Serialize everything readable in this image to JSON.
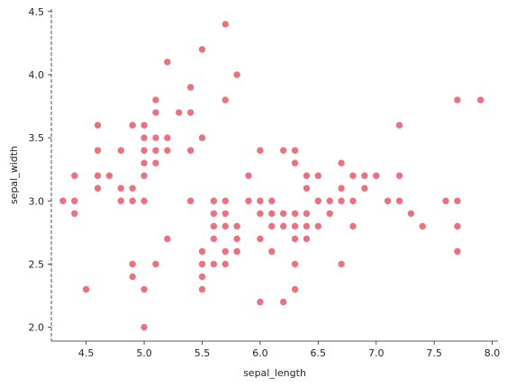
{
  "chart_data": {
    "type": "scatter",
    "title": "",
    "xlabel": "sepal_length",
    "ylabel": "sepal_width",
    "xlim": [
      4.2,
      8.05
    ],
    "ylim": [
      1.89,
      4.52
    ],
    "xticks": [
      4.5,
      5.0,
      5.5,
      6.0,
      6.5,
      7.0,
      7.5,
      8.0
    ],
    "yticks": [
      2.0,
      2.5,
      3.0,
      3.5,
      4.0,
      4.5
    ],
    "xtick_labels": [
      "4.5",
      "5.0",
      "5.5",
      "6.0",
      "6.5",
      "7.0",
      "7.5",
      "8.0"
    ],
    "ytick_labels": [
      "2.0",
      "2.5",
      "3.0",
      "3.5",
      "4.0",
      "4.5"
    ],
    "grid": false,
    "color": "#e8727f",
    "points": [
      [
        5.1,
        3.5
      ],
      [
        4.9,
        3.0
      ],
      [
        4.7,
        3.2
      ],
      [
        4.6,
        3.1
      ],
      [
        5.0,
        3.6
      ],
      [
        5.4,
        3.9
      ],
      [
        4.6,
        3.4
      ],
      [
        5.0,
        3.4
      ],
      [
        4.4,
        2.9
      ],
      [
        4.9,
        3.1
      ],
      [
        5.4,
        3.7
      ],
      [
        4.8,
        3.4
      ],
      [
        4.8,
        3.0
      ],
      [
        4.3,
        3.0
      ],
      [
        5.8,
        4.0
      ],
      [
        5.7,
        4.4
      ],
      [
        5.4,
        3.9
      ],
      [
        5.1,
        3.5
      ],
      [
        5.7,
        3.8
      ],
      [
        5.1,
        3.8
      ],
      [
        5.4,
        3.4
      ],
      [
        5.1,
        3.7
      ],
      [
        4.6,
        3.6
      ],
      [
        5.1,
        3.3
      ],
      [
        4.8,
        3.4
      ],
      [
        5.0,
        3.0
      ],
      [
        5.0,
        3.4
      ],
      [
        5.2,
        3.5
      ],
      [
        5.2,
        3.4
      ],
      [
        4.7,
        3.2
      ],
      [
        4.8,
        3.1
      ],
      [
        5.4,
        3.4
      ],
      [
        5.2,
        4.1
      ],
      [
        5.5,
        4.2
      ],
      [
        4.9,
        3.1
      ],
      [
        5.0,
        3.2
      ],
      [
        5.5,
        3.5
      ],
      [
        4.9,
        3.6
      ],
      [
        4.4,
        3.0
      ],
      [
        5.1,
        3.4
      ],
      [
        5.0,
        3.5
      ],
      [
        4.5,
        2.3
      ],
      [
        4.4,
        3.2
      ],
      [
        5.0,
        3.5
      ],
      [
        5.1,
        3.8
      ],
      [
        4.8,
        3.0
      ],
      [
        5.1,
        3.8
      ],
      [
        4.6,
        3.2
      ],
      [
        5.3,
        3.7
      ],
      [
        5.0,
        3.3
      ],
      [
        7.0,
        3.2
      ],
      [
        6.4,
        3.2
      ],
      [
        6.9,
        3.1
      ],
      [
        5.5,
        2.3
      ],
      [
        6.5,
        2.8
      ],
      [
        5.7,
        2.8
      ],
      [
        6.3,
        3.3
      ],
      [
        4.9,
        2.4
      ],
      [
        6.6,
        2.9
      ],
      [
        5.2,
        2.7
      ],
      [
        5.0,
        2.0
      ],
      [
        5.9,
        3.0
      ],
      [
        6.0,
        2.2
      ],
      [
        6.1,
        2.9
      ],
      [
        5.6,
        2.9
      ],
      [
        6.7,
        3.1
      ],
      [
        5.6,
        3.0
      ],
      [
        5.8,
        2.7
      ],
      [
        6.2,
        2.2
      ],
      [
        5.6,
        2.5
      ],
      [
        5.9,
        3.2
      ],
      [
        6.1,
        2.8
      ],
      [
        6.3,
        2.5
      ],
      [
        6.1,
        2.8
      ],
      [
        6.4,
        2.9
      ],
      [
        6.6,
        3.0
      ],
      [
        6.8,
        2.8
      ],
      [
        6.7,
        3.0
      ],
      [
        6.0,
        2.9
      ],
      [
        5.7,
        2.6
      ],
      [
        5.5,
        2.4
      ],
      [
        5.5,
        2.4
      ],
      [
        5.8,
        2.7
      ],
      [
        6.0,
        2.7
      ],
      [
        5.4,
        3.0
      ],
      [
        6.0,
        3.4
      ],
      [
        6.7,
        3.1
      ],
      [
        6.3,
        2.3
      ],
      [
        5.6,
        3.0
      ],
      [
        5.5,
        2.5
      ],
      [
        5.5,
        2.6
      ],
      [
        6.1,
        3.0
      ],
      [
        5.8,
        2.6
      ],
      [
        5.0,
        2.3
      ],
      [
        5.6,
        2.7
      ],
      [
        5.7,
        3.0
      ],
      [
        5.7,
        2.9
      ],
      [
        6.2,
        2.9
      ],
      [
        5.1,
        2.5
      ],
      [
        5.7,
        2.8
      ],
      [
        6.3,
        3.3
      ],
      [
        5.8,
        2.7
      ],
      [
        7.1,
        3.0
      ],
      [
        6.3,
        2.9
      ],
      [
        6.5,
        3.0
      ],
      [
        7.6,
        3.0
      ],
      [
        4.9,
        2.5
      ],
      [
        7.3,
        2.9
      ],
      [
        6.7,
        2.5
      ],
      [
        7.2,
        3.6
      ],
      [
        6.5,
        3.2
      ],
      [
        6.4,
        2.7
      ],
      [
        6.8,
        3.0
      ],
      [
        5.7,
        2.5
      ],
      [
        5.8,
        2.8
      ],
      [
        6.4,
        3.2
      ],
      [
        6.5,
        3.0
      ],
      [
        7.7,
        3.8
      ],
      [
        7.7,
        2.6
      ],
      [
        6.0,
        2.2
      ],
      [
        6.9,
        3.2
      ],
      [
        5.6,
        2.8
      ],
      [
        7.7,
        2.8
      ],
      [
        6.3,
        2.7
      ],
      [
        6.7,
        3.3
      ],
      [
        7.2,
        3.2
      ],
      [
        6.2,
        2.8
      ],
      [
        6.1,
        3.0
      ],
      [
        6.4,
        2.8
      ],
      [
        7.2,
        3.0
      ],
      [
        7.4,
        2.8
      ],
      [
        7.9,
        3.8
      ],
      [
        6.4,
        2.8
      ],
      [
        6.3,
        2.8
      ],
      [
        6.1,
        2.6
      ],
      [
        7.7,
        3.0
      ],
      [
        6.3,
        3.4
      ],
      [
        6.4,
        3.1
      ],
      [
        6.0,
        3.0
      ],
      [
        6.9,
        3.1
      ],
      [
        6.7,
        3.1
      ],
      [
        6.9,
        3.1
      ],
      [
        5.8,
        2.7
      ],
      [
        6.8,
        3.2
      ],
      [
        6.7,
        3.3
      ],
      [
        6.7,
        3.0
      ],
      [
        6.3,
        2.5
      ],
      [
        6.5,
        3.0
      ],
      [
        6.2,
        3.4
      ],
      [
        5.9,
        3.0
      ]
    ]
  }
}
